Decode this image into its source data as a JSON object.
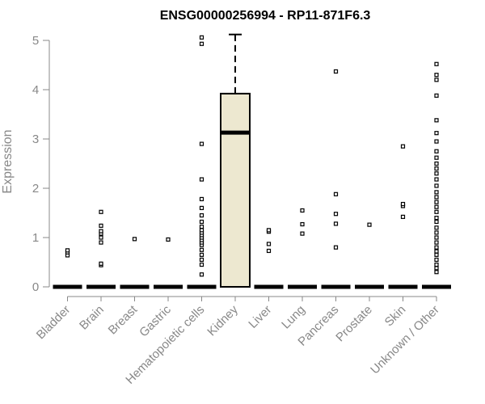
{
  "chart_data": {
    "type": "boxplot",
    "title": "ENSG00000256994 - RP11-871F6.3",
    "xlabel": "",
    "ylabel": "Expression",
    "ylim": [
      0,
      5.1
    ],
    "yticks": [
      0,
      1,
      2,
      3,
      4,
      5
    ],
    "grid": false,
    "box_fill": "#ede8d0",
    "box_stroke": "#000000",
    "axis_color": "#888888",
    "categories": [
      "Bladder",
      "Brain",
      "Breast",
      "Gastric",
      "Hematopoietic cells",
      "Kidney",
      "Liver",
      "Lung",
      "Pancreas",
      "Prostate",
      "Skin",
      "Unknown / Other"
    ],
    "boxes": [
      {
        "category": "Bladder",
        "q1": 0,
        "median": 0,
        "q3": 0,
        "whisker_low": 0,
        "whisker_high": 0,
        "outliers": [
          0.64,
          0.7,
          0.74
        ]
      },
      {
        "category": "Brain",
        "q1": 0,
        "median": 0,
        "q3": 0,
        "whisker_low": 0,
        "whisker_high": 0,
        "outliers": [
          0.44,
          0.47,
          0.9,
          1.0,
          1.08,
          1.13,
          1.24,
          1.52
        ]
      },
      {
        "category": "Breast",
        "q1": 0,
        "median": 0,
        "q3": 0,
        "whisker_low": 0,
        "whisker_high": 0,
        "outliers": [
          0.97
        ]
      },
      {
        "category": "Gastric",
        "q1": 0,
        "median": 0,
        "q3": 0,
        "whisker_low": 0,
        "whisker_high": 0,
        "outliers": [
          0.96
        ]
      },
      {
        "category": "Hematopoietic cells",
        "q1": 0,
        "median": 0,
        "q3": 0,
        "whisker_low": 0,
        "whisker_high": 0,
        "outliers": [
          0.25,
          0.45,
          0.55,
          0.65,
          0.75,
          0.85,
          0.9,
          0.95,
          1.0,
          1.05,
          1.1,
          1.15,
          1.22,
          1.32,
          1.45,
          1.6,
          1.78,
          2.18,
          2.9,
          4.93,
          5.06
        ]
      },
      {
        "category": "Kidney",
        "q1": 0,
        "median": 3.13,
        "q3": 3.92,
        "whisker_low": 0,
        "whisker_high": 5.12,
        "outliers": []
      },
      {
        "category": "Liver",
        "q1": 0,
        "median": 0,
        "q3": 0,
        "whisker_low": 0,
        "whisker_high": 0,
        "outliers": [
          0.73,
          0.87,
          1.12,
          1.15
        ]
      },
      {
        "category": "Lung",
        "q1": 0,
        "median": 0,
        "q3": 0,
        "whisker_low": 0,
        "whisker_high": 0,
        "outliers": [
          1.08,
          1.27,
          1.55
        ]
      },
      {
        "category": "Pancreas",
        "q1": 0,
        "median": 0,
        "q3": 0,
        "whisker_low": 0,
        "whisker_high": 0,
        "outliers": [
          0.8,
          1.28,
          1.48,
          1.88,
          4.37
        ]
      },
      {
        "category": "Prostate",
        "q1": 0,
        "median": 0,
        "q3": 0,
        "whisker_low": 0,
        "whisker_high": 0,
        "outliers": [
          1.26
        ]
      },
      {
        "category": "Skin",
        "q1": 0,
        "median": 0,
        "q3": 0,
        "whisker_low": 0,
        "whisker_high": 0,
        "outliers": [
          1.42,
          1.64,
          1.68,
          2.85
        ]
      },
      {
        "category": "Unknown / Other",
        "q1": 0,
        "median": 0,
        "q3": 0,
        "whisker_low": 0,
        "whisker_high": 0,
        "outliers": [
          0.3,
          0.38,
          0.45,
          0.55,
          0.65,
          0.72,
          0.8,
          0.9,
          1.0,
          1.1,
          1.2,
          1.32,
          1.4,
          1.52,
          1.62,
          1.72,
          1.82,
          1.92,
          2.05,
          2.18,
          2.3,
          2.4,
          2.5,
          2.62,
          2.75,
          2.95,
          3.12,
          3.38,
          3.88,
          4.2,
          4.3,
          4.52
        ]
      }
    ]
  }
}
